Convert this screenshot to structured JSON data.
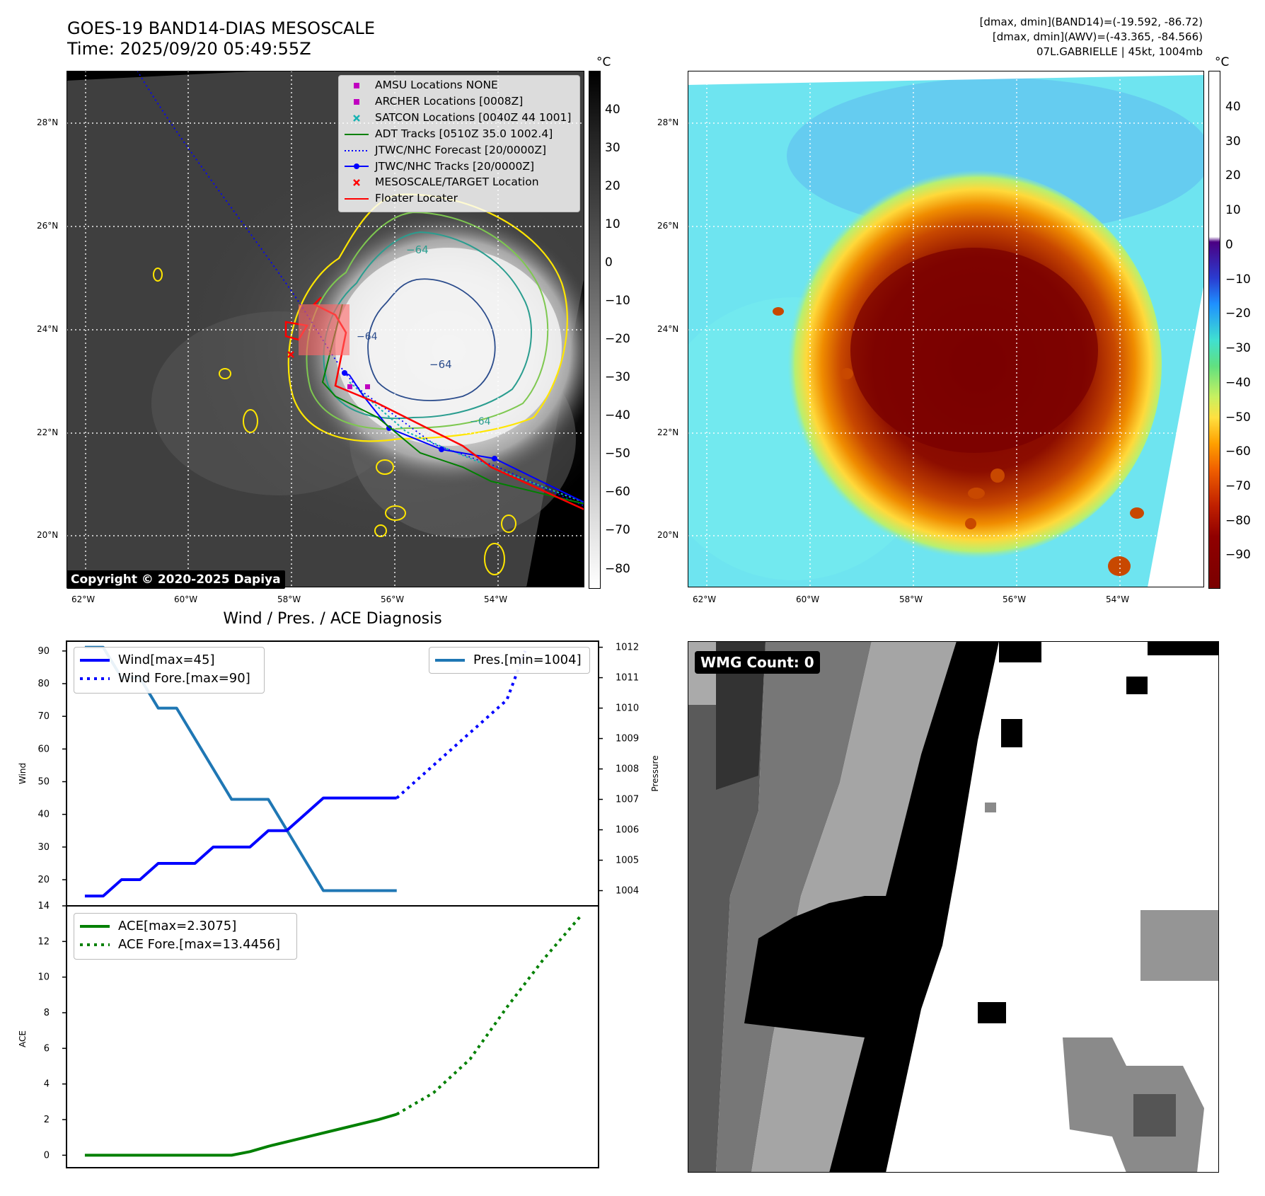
{
  "header": {
    "title_line1": "GOES-19 BAND14-DIAS MESOSCALE",
    "title_line2": "Time: 2025/09/20 05:49:55Z",
    "stats_line1": "[dmax, dmin](BAND14)=(-19.592, -86.72)",
    "stats_line2": "[dmax, dmin](AWV)=(-43.365, -84.566)",
    "stats_line3": "07L.GABRIELLE | 45kt, 1004mb"
  },
  "map_axes": {
    "lat_labels": [
      "28°N",
      "26°N",
      "24°N",
      "22°N",
      "20°N"
    ],
    "lon_labels": [
      "62°W",
      "60°W",
      "58°W",
      "56°W",
      "54°W"
    ]
  },
  "colorbar_left": {
    "unit": "°C",
    "ticks": [
      "40",
      "30",
      "20",
      "10",
      "0",
      "−10",
      "−20",
      "−30",
      "−40",
      "−50",
      "−60",
      "−70",
      "−80"
    ]
  },
  "colorbar_right": {
    "unit": "°C",
    "ticks": [
      "40",
      "30",
      "20",
      "10",
      "0",
      "−10",
      "−20",
      "−30",
      "−40",
      "−50",
      "−60",
      "−70",
      "−80",
      "−90"
    ]
  },
  "ir_map": {
    "contour_labels": [
      "−64",
      "−64",
      "−64",
      "−64"
    ],
    "copyright": "Copyright © 2020-2025 Dapiya",
    "legend": [
      {
        "label": "AMSU Locations NONE",
        "marker": "square",
        "color": "#c000c0"
      },
      {
        "label": "ARCHER Locations [0008Z]",
        "marker": "square",
        "color": "#c000c0"
      },
      {
        "label": "SATCON Locations [0040Z 44 1001]",
        "marker": "x",
        "color": "#17b3b3"
      },
      {
        "label": "ADT Tracks [0510Z 35.0 1002.4]",
        "marker": "line",
        "color": "#008000"
      },
      {
        "label": "JTWC/NHC Forecast [20/0000Z]",
        "marker": "dotted",
        "color": "#0000ff"
      },
      {
        "label": "JTWC/NHC Tracks [20/0000Z]",
        "marker": "line-dot",
        "color": "#0000ff"
      },
      {
        "label": "MESOSCALE/TARGET Location",
        "marker": "x",
        "color": "#ff0000"
      },
      {
        "label": "Floater Locater",
        "marker": "line",
        "color": "#ff0000"
      }
    ]
  },
  "chart_data": [
    {
      "type": "line",
      "title": "Wind / Pres. / ACE Diagnosis",
      "ylabel": "Wind",
      "ylabel_right": "Pressure",
      "ylim": [
        12,
        93
      ],
      "ylim_right": [
        1003.5,
        1012.2
      ],
      "yticks": [
        "90",
        "80",
        "70",
        "60",
        "50",
        "40",
        "30",
        "20"
      ],
      "yticks_right": [
        "1012",
        "1011",
        "1010",
        "1009",
        "1008",
        "1007",
        "1006",
        "1005",
        "1004"
      ],
      "x": [
        0,
        1,
        2,
        3,
        4,
        5,
        6,
        7,
        8,
        9,
        10,
        11,
        12,
        13,
        14,
        15,
        16,
        17,
        18,
        19,
        20,
        21,
        22,
        23,
        24
      ],
      "series": [
        {
          "name": "Wind[max=45]",
          "style": "solid",
          "color": "#0000ff",
          "axis": "left",
          "x": [
            0,
            1,
            2,
            3,
            4,
            5,
            6,
            7,
            8,
            9,
            10,
            11,
            12,
            13,
            14,
            15,
            16,
            17
          ],
          "values": [
            15,
            15,
            20,
            20,
            25,
            25,
            25,
            30,
            30,
            30,
            35,
            35,
            40,
            45,
            45,
            45,
            45,
            45
          ]
        },
        {
          "name": "Wind Fore.[max=90]",
          "style": "dotted",
          "color": "#0000ff",
          "axis": "left",
          "x": [
            17,
            20,
            23,
            24
          ],
          "values": [
            45,
            60,
            75,
            90
          ]
        },
        {
          "name": "Pres.[min=1004]",
          "style": "solid",
          "color": "#1f77b4",
          "axis": "right",
          "x": [
            0,
            1,
            2,
            3,
            4,
            5,
            6,
            7,
            8,
            9,
            10,
            11,
            12,
            13,
            14,
            15,
            16,
            17
          ],
          "values": [
            1012,
            1012,
            1011,
            1011,
            1010,
            1010,
            1009,
            1008,
            1007,
            1007,
            1007,
            1006,
            1005,
            1004,
            1004,
            1004,
            1004,
            1004
          ]
        }
      ]
    },
    {
      "type": "line",
      "ylabel": "ACE",
      "ylim": [
        -0.7,
        14
      ],
      "yticks": [
        "14",
        "12",
        "10",
        "8",
        "6",
        "4",
        "2",
        "0"
      ],
      "series": [
        {
          "name": "ACE[max=2.3075]",
          "style": "solid",
          "color": "#008000",
          "x": [
            0,
            5,
            8,
            9,
            10,
            12,
            14,
            16,
            17
          ],
          "values": [
            0,
            0,
            0,
            0.2,
            0.5,
            1.0,
            1.5,
            2.0,
            2.3
          ]
        },
        {
          "name": "ACE Fore.[max=13.4456]",
          "style": "dotted",
          "color": "#008000",
          "x": [
            17,
            19,
            21,
            23,
            25,
            27
          ],
          "values": [
            2.3,
            3.5,
            5.4,
            8.3,
            11.0,
            13.4
          ]
        }
      ]
    }
  ],
  "wmg_panel": {
    "badge": "WMG Count: 0"
  }
}
